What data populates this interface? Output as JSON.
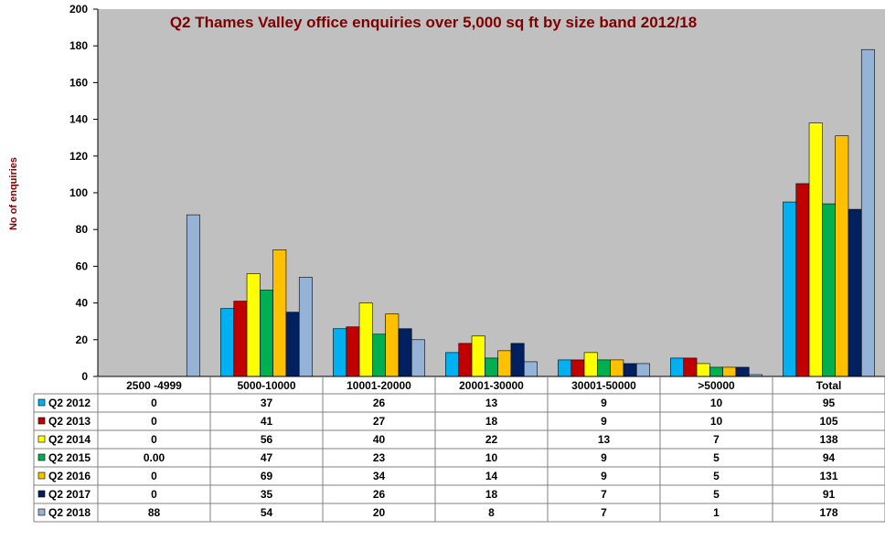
{
  "chart_data": {
    "type": "bar",
    "title": "Q2 Thames Valley office enquiries over 5,000 sq ft by size band 2012/18",
    "ylabel": "No of enquiries",
    "xlabel": "",
    "ylim": [
      0,
      200
    ],
    "yticks": [
      0,
      20,
      40,
      60,
      80,
      100,
      120,
      140,
      160,
      180,
      200
    ],
    "grid": false,
    "legend": "table-left",
    "categories": [
      "2500 -4999",
      "5000-10000",
      "10001-20000",
      "20001-30000",
      "30001-50000",
      ">50000",
      "Total"
    ],
    "series": [
      {
        "name": "Q2 2012",
        "color": "#00b0f0",
        "values": [
          0,
          37,
          26,
          13,
          9,
          10,
          95
        ],
        "labels": [
          "0",
          "37",
          "26",
          "13",
          "9",
          "10",
          "95"
        ]
      },
      {
        "name": "Q2 2013",
        "color": "#c00000",
        "values": [
          0,
          41,
          27,
          18,
          9,
          10,
          105
        ],
        "labels": [
          "0",
          "41",
          "27",
          "18",
          "9",
          "10",
          "105"
        ]
      },
      {
        "name": "Q2 2014",
        "color": "#ffff00",
        "values": [
          0,
          56,
          40,
          22,
          13,
          7,
          138
        ],
        "labels": [
          "0",
          "56",
          "40",
          "22",
          "13",
          "7",
          "138"
        ]
      },
      {
        "name": "Q2 2015",
        "color": "#00b050",
        "values": [
          0,
          47,
          23,
          10,
          9,
          5,
          94
        ],
        "labels": [
          "0.00",
          "47",
          "23",
          "10",
          "9",
          "5",
          "94"
        ]
      },
      {
        "name": "Q2 2016",
        "color": "#ffc000",
        "values": [
          0,
          69,
          34,
          14,
          9,
          5,
          131
        ],
        "labels": [
          "0",
          "69",
          "34",
          "14",
          "9",
          "5",
          "131"
        ]
      },
      {
        "name": "Q2 2017",
        "color": "#002060",
        "values": [
          0,
          35,
          26,
          18,
          7,
          5,
          91
        ],
        "labels": [
          "0",
          "35",
          "26",
          "18",
          "7",
          "5",
          "91"
        ]
      },
      {
        "name": "Q2 2018",
        "color": "#95b3d7",
        "values": [
          88,
          54,
          20,
          8,
          7,
          1,
          178
        ],
        "labels": [
          "88",
          "54",
          "20",
          "8",
          "7",
          "1",
          "178"
        ]
      }
    ]
  }
}
